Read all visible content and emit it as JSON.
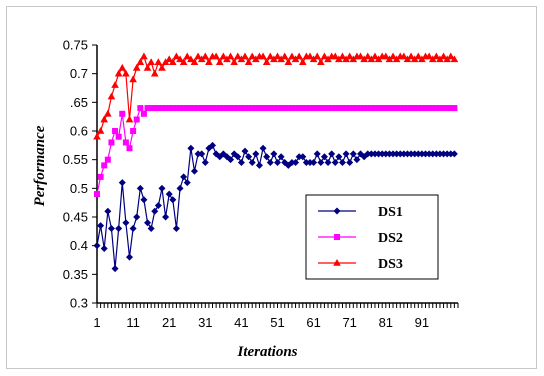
{
  "chart_data": {
    "type": "line",
    "xlabel": "Iterations",
    "ylabel": "Performance",
    "ylim": [
      0.3,
      0.75
    ],
    "yticks": [
      0.3,
      0.35,
      0.4,
      0.45,
      0.5,
      0.55,
      0.6,
      0.65,
      0.7,
      0.75
    ],
    "ytick_labels": [
      "0.3",
      "0.35",
      "0.4",
      "0.45",
      "0.5",
      "0.55",
      "0.6",
      ".65",
      "0.7",
      "0.75"
    ],
    "xlim": [
      1,
      101
    ],
    "xticks": [
      1,
      11,
      21,
      31,
      41,
      51,
      61,
      71,
      81,
      91
    ],
    "legend_position": "center-right",
    "grid": false,
    "x": [
      1,
      2,
      3,
      4,
      5,
      6,
      7,
      8,
      9,
      10,
      11,
      12,
      13,
      14,
      15,
      16,
      17,
      18,
      19,
      20,
      21,
      22,
      23,
      24,
      25,
      26,
      27,
      28,
      29,
      30,
      31,
      32,
      33,
      34,
      35,
      36,
      37,
      38,
      39,
      40,
      41,
      42,
      43,
      44,
      45,
      46,
      47,
      48,
      49,
      50,
      51,
      52,
      53,
      54,
      55,
      56,
      57,
      58,
      59,
      60,
      61,
      62,
      63,
      64,
      65,
      66,
      67,
      68,
      69,
      70,
      71,
      72,
      73,
      74,
      75,
      76,
      77,
      78,
      79,
      80,
      81,
      82,
      83,
      84,
      85,
      86,
      87,
      88,
      89,
      90,
      91,
      92,
      93,
      94,
      95,
      96,
      97,
      98,
      99,
      100
    ],
    "series": [
      {
        "name": "DS1",
        "color": "#000080",
        "marker": "diamond",
        "values": [
          0.4,
          0.435,
          0.395,
          0.46,
          0.43,
          0.36,
          0.43,
          0.51,
          0.44,
          0.38,
          0.43,
          0.45,
          0.5,
          0.48,
          0.44,
          0.43,
          0.46,
          0.47,
          0.5,
          0.45,
          0.49,
          0.48,
          0.43,
          0.5,
          0.52,
          0.51,
          0.57,
          0.53,
          0.56,
          0.56,
          0.545,
          0.57,
          0.575,
          0.56,
          0.555,
          0.56,
          0.555,
          0.55,
          0.56,
          0.555,
          0.545,
          0.565,
          0.555,
          0.545,
          0.56,
          0.54,
          0.57,
          0.555,
          0.545,
          0.56,
          0.545,
          0.555,
          0.545,
          0.54,
          0.545,
          0.545,
          0.555,
          0.555,
          0.545,
          0.545,
          0.545,
          0.56,
          0.545,
          0.555,
          0.545,
          0.56,
          0.545,
          0.555,
          0.545,
          0.56,
          0.545,
          0.56,
          0.55,
          0.56,
          0.555,
          0.56,
          0.56,
          0.56,
          0.56,
          0.56,
          0.56,
          0.56,
          0.56,
          0.56,
          0.56,
          0.56,
          0.56,
          0.56,
          0.56,
          0.56,
          0.56,
          0.56,
          0.56,
          0.56,
          0.56,
          0.56,
          0.56,
          0.56,
          0.56,
          0.56
        ]
      },
      {
        "name": "DS2",
        "color": "#ff00ff",
        "marker": "square",
        "values": [
          0.49,
          0.52,
          0.54,
          0.55,
          0.58,
          0.6,
          0.59,
          0.63,
          0.58,
          0.57,
          0.6,
          0.62,
          0.64,
          0.63,
          0.64,
          0.64,
          0.64,
          0.64,
          0.64,
          0.64,
          0.64,
          0.64,
          0.64,
          0.64,
          0.64,
          0.64,
          0.64,
          0.64,
          0.64,
          0.64,
          0.64,
          0.64,
          0.64,
          0.64,
          0.64,
          0.64,
          0.64,
          0.64,
          0.64,
          0.64,
          0.64,
          0.64,
          0.64,
          0.64,
          0.64,
          0.64,
          0.64,
          0.64,
          0.64,
          0.64,
          0.64,
          0.64,
          0.64,
          0.64,
          0.64,
          0.64,
          0.64,
          0.64,
          0.64,
          0.64,
          0.64,
          0.64,
          0.64,
          0.64,
          0.64,
          0.64,
          0.64,
          0.64,
          0.64,
          0.64,
          0.64,
          0.64,
          0.64,
          0.64,
          0.64,
          0.64,
          0.64,
          0.64,
          0.64,
          0.64,
          0.64,
          0.64,
          0.64,
          0.64,
          0.64,
          0.64,
          0.64,
          0.64,
          0.64,
          0.64,
          0.64,
          0.64,
          0.64,
          0.64,
          0.64,
          0.64,
          0.64,
          0.64,
          0.64,
          0.64
        ]
      },
      {
        "name": "DS3",
        "color": "#ff0000",
        "marker": "triangle",
        "values": [
          0.59,
          0.6,
          0.62,
          0.63,
          0.66,
          0.68,
          0.7,
          0.71,
          0.7,
          0.62,
          0.69,
          0.71,
          0.72,
          0.73,
          0.71,
          0.72,
          0.7,
          0.72,
          0.71,
          0.72,
          0.725,
          0.72,
          0.73,
          0.725,
          0.72,
          0.73,
          0.725,
          0.72,
          0.73,
          0.725,
          0.73,
          0.72,
          0.73,
          0.73,
          0.72,
          0.73,
          0.725,
          0.73,
          0.72,
          0.73,
          0.725,
          0.73,
          0.72,
          0.73,
          0.725,
          0.73,
          0.73,
          0.72,
          0.73,
          0.725,
          0.73,
          0.725,
          0.73,
          0.72,
          0.73,
          0.725,
          0.73,
          0.72,
          0.73,
          0.73,
          0.725,
          0.73,
          0.72,
          0.73,
          0.725,
          0.73,
          0.73,
          0.725,
          0.73,
          0.725,
          0.73,
          0.725,
          0.73,
          0.73,
          0.725,
          0.73,
          0.725,
          0.73,
          0.725,
          0.73,
          0.73,
          0.725,
          0.73,
          0.725,
          0.73,
          0.73,
          0.725,
          0.73,
          0.725,
          0.73,
          0.725,
          0.73,
          0.73,
          0.725,
          0.73,
          0.725,
          0.73,
          0.725,
          0.73,
          0.725
        ]
      }
    ]
  }
}
